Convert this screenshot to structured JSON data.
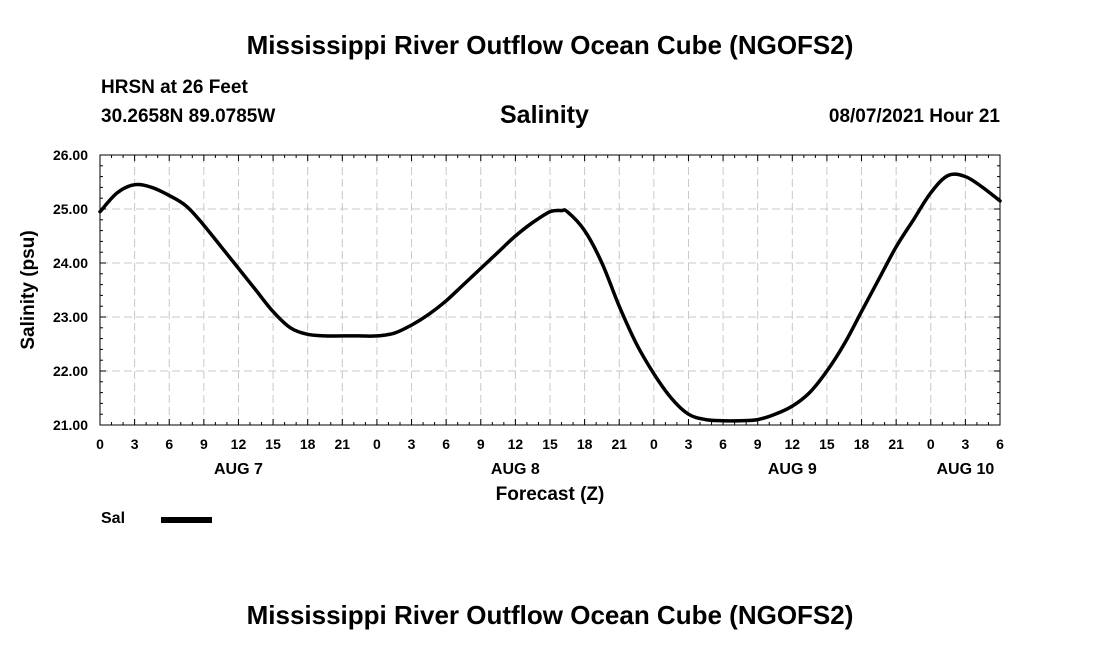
{
  "header": {
    "title": "Mississippi River Outflow Ocean Cube (NGOFS2)",
    "station": "HRSN at 26 Feet",
    "coords": "30.2658N  89.0785W",
    "parameter": "Salinity",
    "timestamp": "08/07/2021 Hour 21"
  },
  "footer": {
    "title": "Mississippi River Outflow Ocean Cube (NGOFS2)"
  },
  "legend": {
    "label": "Sal",
    "color": "#000000"
  },
  "chart_data": {
    "type": "line",
    "title": "Salinity",
    "xlabel": "Forecast (Z)",
    "ylabel": "Salinity (psu)",
    "ylim": [
      21.0,
      26.0
    ],
    "xlim": [
      0,
      78
    ],
    "x_units": "hours since AUG 7 00Z",
    "yticks": [
      21.0,
      22.0,
      23.0,
      24.0,
      25.0,
      26.0
    ],
    "ytick_labels": [
      "21.00",
      "22.00",
      "23.00",
      "24.00",
      "25.00",
      "26.00"
    ],
    "xticks": [
      0,
      3,
      6,
      9,
      12,
      15,
      18,
      21,
      24,
      27,
      30,
      33,
      36,
      39,
      42,
      45,
      48,
      51,
      54,
      57,
      60,
      63,
      66,
      69,
      72,
      75,
      78
    ],
    "xtick_labels": [
      "0",
      "3",
      "6",
      "9",
      "12",
      "15",
      "18",
      "21",
      "0",
      "3",
      "6",
      "9",
      "12",
      "15",
      "18",
      "21",
      "0",
      "3",
      "6",
      "9",
      "12",
      "15",
      "18",
      "21",
      "0",
      "3",
      "6"
    ],
    "date_labels": [
      {
        "hour": 12,
        "label": "AUG 7"
      },
      {
        "hour": 36,
        "label": "AUG 8"
      },
      {
        "hour": 60,
        "label": "AUG 9"
      },
      {
        "hour": 75,
        "label": "AUG 10"
      }
    ],
    "grid": true,
    "legend_position": "bottom-left",
    "series": [
      {
        "name": "Sal",
        "color": "#000000",
        "x": [
          0,
          1.5,
          3,
          4.5,
          6,
          7.5,
          9,
          10.5,
          12,
          13.5,
          15,
          16.5,
          18,
          19.5,
          21,
          22.5,
          24,
          25.5,
          27,
          28.5,
          30,
          31.5,
          33,
          34.5,
          36,
          37.5,
          39,
          40,
          40.5,
          42,
          43.5,
          45,
          46.5,
          48,
          49.5,
          51,
          52.5,
          54,
          55.5,
          57,
          58.5,
          60,
          61.5,
          63,
          64.5,
          66,
          67.5,
          69,
          70.5,
          72,
          73.5,
          75,
          76.5,
          78
        ],
        "values": [
          24.95,
          25.3,
          25.45,
          25.4,
          25.25,
          25.05,
          24.7,
          24.3,
          23.9,
          23.5,
          23.1,
          22.8,
          22.68,
          22.65,
          22.65,
          22.65,
          22.65,
          22.7,
          22.85,
          23.05,
          23.3,
          23.6,
          23.9,
          24.2,
          24.5,
          24.75,
          24.95,
          24.97,
          24.95,
          24.6,
          24.0,
          23.2,
          22.5,
          21.95,
          21.5,
          21.2,
          21.1,
          21.08,
          21.08,
          21.1,
          21.2,
          21.35,
          21.6,
          22.0,
          22.5,
          23.1,
          23.7,
          24.3,
          24.8,
          25.3,
          25.62,
          25.6,
          25.4,
          25.15
        ]
      }
    ]
  }
}
